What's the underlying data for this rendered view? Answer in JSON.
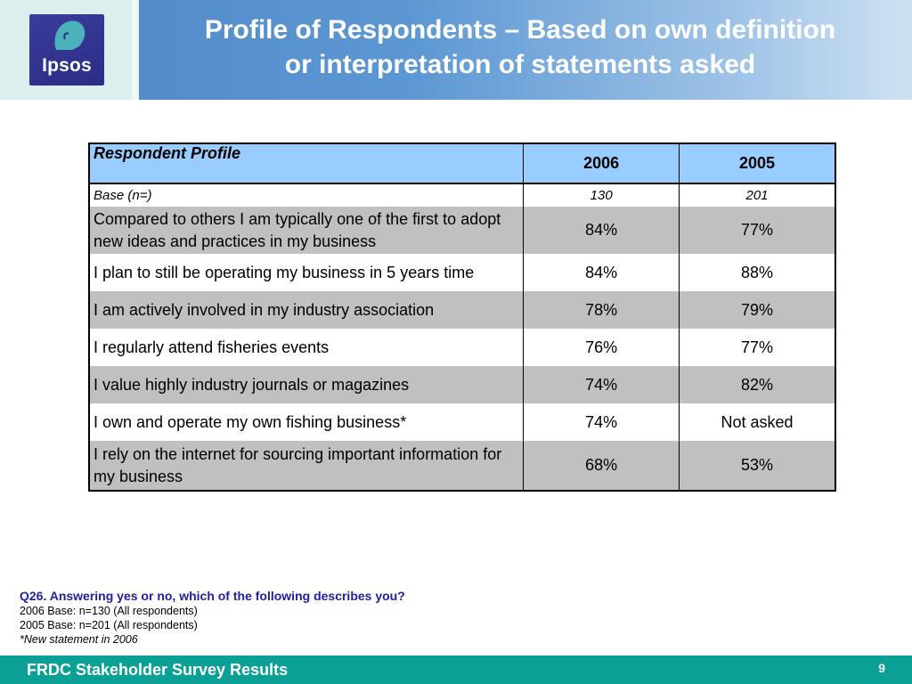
{
  "header": {
    "logo_text": "Ipsos",
    "title_line1": "Profile of Respondents – Based on own definition",
    "title_line2": "or interpretation of statements asked"
  },
  "table": {
    "headers": {
      "profile": "Respondent Profile",
      "y2006": "2006",
      "y2005": "2005"
    },
    "base": {
      "label": "Base (n=)",
      "v2006": "130",
      "v2005": "201"
    },
    "rows": [
      {
        "label": "Compared to others I am typically one of the first to adopt new ideas and practices in my business",
        "v2006": "84%",
        "v2005": "77%"
      },
      {
        "label": "I plan to still be operating my business in 5 years time",
        "v2006": "84%",
        "v2005": "88%"
      },
      {
        "label": "I am actively involved in my industry association",
        "v2006": "78%",
        "v2005": "79%"
      },
      {
        "label": "I regularly attend fisheries events",
        "v2006": "76%",
        "v2005": "77%"
      },
      {
        "label": "I value highly industry journals or magazines",
        "v2006": "74%",
        "v2005": "82%"
      },
      {
        "label": "I own and operate my own fishing business*",
        "v2006": "74%",
        "v2005": "Not asked"
      },
      {
        "label": "I rely on the internet for sourcing important information for my business",
        "v2006": "68%",
        "v2005": "53%"
      }
    ]
  },
  "footnote": {
    "question": "Q26. Answering yes or no, which of the following describes you?",
    "base2006": "2006 Base: n=130 (All respondents)",
    "base2005": "2005 Base: n=201 (All respondents)",
    "note": "*New statement in 2006"
  },
  "footer": {
    "title": "FRDC Stakeholder Survey Results",
    "page_number": "9"
  },
  "colors": {
    "header_blue": "#5c97d3",
    "table_header": "#99ccff",
    "row_gray": "#c0c0c0",
    "footer_teal": "#0aa095",
    "question_blue": "#1f1f9f"
  }
}
